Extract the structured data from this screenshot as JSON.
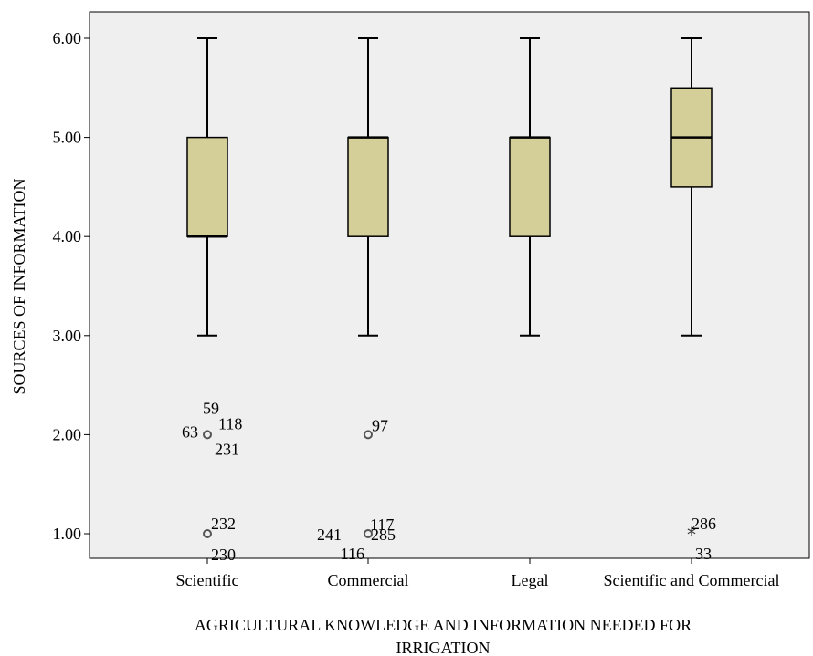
{
  "chart_data": {
    "type": "boxplot",
    "xlabel_line1": "AGRICULTURAL KNOWLEDGE AND INFORMATION NEEDED FOR",
    "xlabel_line2": "IRRIGATION",
    "ylabel": "SOURCES OF INFORMATION",
    "ylim": [
      0.75,
      6.3
    ],
    "yticks": [
      "1.00",
      "2.00",
      "3.00",
      "4.00",
      "5.00",
      "6.00"
    ],
    "ytick_values": [
      1,
      2,
      3,
      4,
      5,
      6
    ],
    "grid": false,
    "colors": {
      "plot_bg": "#efefef",
      "box_fill": "#d4cf98",
      "outlier": "#555555"
    },
    "categories": [
      "Scientific",
      "Commercial",
      "Legal",
      "Scientific and Commercial"
    ],
    "boxes": [
      {
        "whisker_low": 3,
        "q1": 4,
        "median": 4,
        "q3": 5,
        "whisker_high": 6
      },
      {
        "whisker_low": 3,
        "q1": 4,
        "median": 5,
        "q3": 5,
        "whisker_high": 6
      },
      {
        "whisker_low": 3,
        "q1": 4,
        "median": 5,
        "q3": 5,
        "whisker_high": 6
      },
      {
        "whisker_low": 3,
        "q1": 4.5,
        "median": 5,
        "q3": 5.5,
        "whisker_high": 6
      }
    ],
    "outliers": [
      {
        "category": 0,
        "value": 2,
        "marker": "circle",
        "labels": [
          "59",
          "63",
          "118",
          "231"
        ]
      },
      {
        "category": 0,
        "value": 1,
        "marker": "circle",
        "labels": [
          "232",
          "230"
        ]
      },
      {
        "category": 1,
        "value": 2,
        "marker": "circle",
        "labels": [
          "97"
        ]
      },
      {
        "category": 1,
        "value": 1,
        "marker": "circle",
        "labels": [
          "117",
          "241",
          "285",
          "116"
        ]
      },
      {
        "category": 3,
        "value": 1,
        "marker": "star",
        "labels": [
          "286",
          "33"
        ]
      }
    ]
  }
}
